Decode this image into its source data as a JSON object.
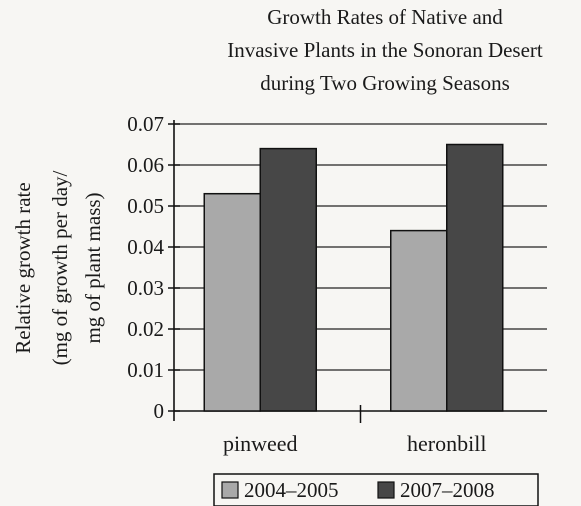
{
  "chart_data": {
    "type": "bar",
    "title_lines": [
      "Growth Rates of Native and",
      "Invasive Plants in the Sonoran Desert",
      "during Two Growing Seasons"
    ],
    "ylabel_lines": [
      "Relative growth rate",
      "(mg of growth per day/",
      "mg of plant mass)"
    ],
    "xlabel": "",
    "categories": [
      "pinweed",
      "heronbill"
    ],
    "series": [
      {
        "name": "2004–2005",
        "values": [
          0.053,
          0.044
        ],
        "color": "#a9a9a9"
      },
      {
        "name": "2007–2008",
        "values": [
          0.064,
          0.065
        ],
        "color": "#474747"
      }
    ],
    "ylim": [
      0,
      0.07
    ],
    "yticks": [
      "0",
      "0.01",
      "0.02",
      "0.03",
      "0.04",
      "0.05",
      "0.06",
      "0.07"
    ],
    "grid": true,
    "legend_position": "bottom"
  }
}
